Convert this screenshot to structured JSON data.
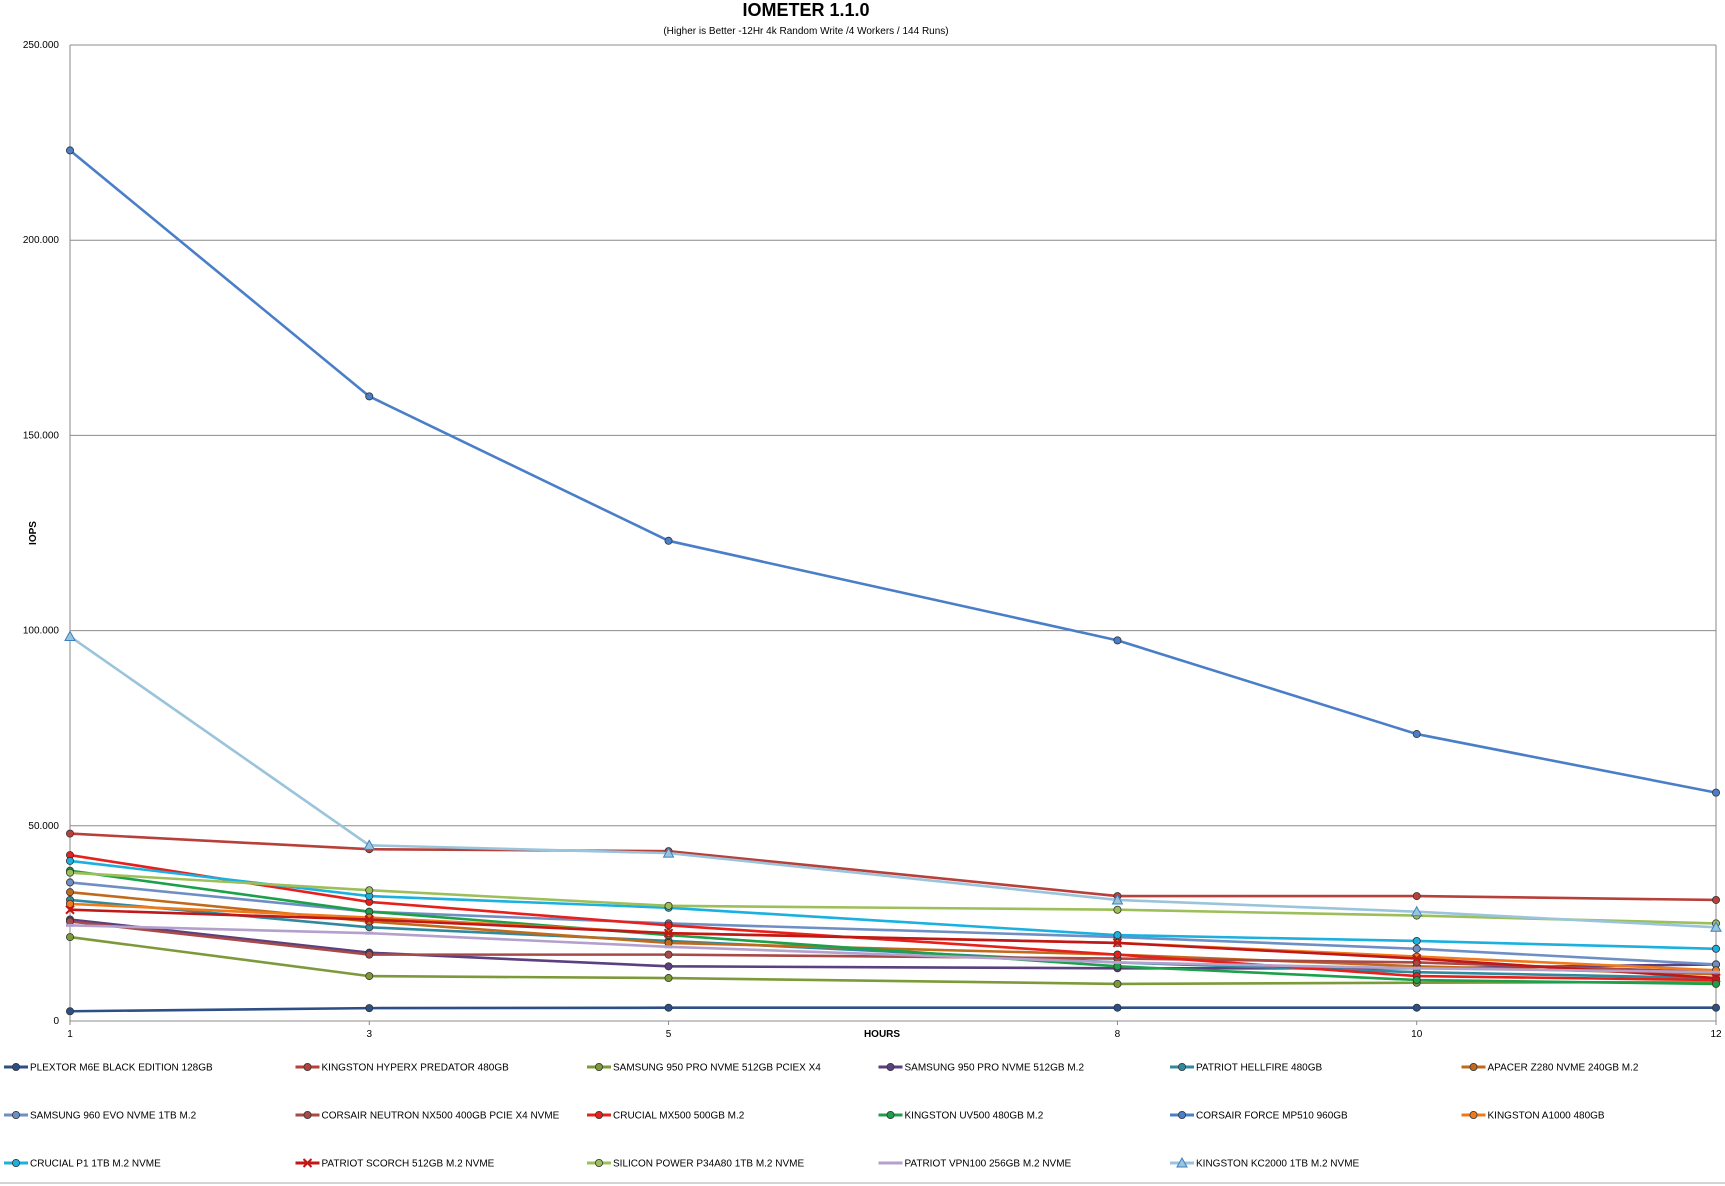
{
  "chart_data": {
    "type": "line",
    "title": "IOMETER 1.1.0",
    "subtitle": "(Higher is Better -12Hr 4k Random Write /4 Workers / 144 Runs)",
    "xlabel": "HOURS",
    "ylabel": "IOPS",
    "x": [
      1,
      3,
      5,
      8,
      10,
      12
    ],
    "x_tick_labels": [
      "1",
      "3",
      "5",
      "8",
      "10",
      "12"
    ],
    "ylim": [
      0,
      250000
    ],
    "y_ticks": [
      0,
      50000,
      100000,
      150000,
      200000,
      250000
    ],
    "y_tick_labels": [
      "0",
      "50.000",
      "100.000",
      "150.000",
      "200.000",
      "250.000"
    ],
    "grid": "horizontal",
    "legend_position": "bottom",
    "series": [
      {
        "name": "PLEXTOR M6E BLACK EDITION 128GB",
        "color": "#2e4f86",
        "marker": "circle",
        "values": [
          2500,
          3300,
          3400,
          3400,
          3400,
          3400
        ]
      },
      {
        "name": "KINGSTON HYPERX PREDATOR 480GB",
        "color": "#b8403a",
        "marker": "circle",
        "values": [
          48000,
          44000,
          43500,
          32000,
          32000,
          31000
        ]
      },
      {
        "name": "SAMSUNG 950 PRO NVME 512GB PCIEX X4",
        "color": "#7d9a3a",
        "marker": "circle",
        "values": [
          21500,
          11500,
          11000,
          9500,
          9800,
          10000
        ]
      },
      {
        "name": "SAMSUNG 950 PRO NVME 512GB M.2",
        "color": "#5b3f7f",
        "marker": "circle",
        "values": [
          26000,
          17500,
          14000,
          13500,
          13500,
          14500
        ]
      },
      {
        "name": "PATRIOT HELLFIRE 480GB",
        "color": "#2f8a9e",
        "marker": "circle",
        "values": [
          31000,
          24000,
          20500,
          15000,
          12500,
          11000
        ]
      },
      {
        "name": "APACER Z280 NVME 240GB M.2",
        "color": "#c06a1c",
        "marker": "circle",
        "values": [
          33000,
          25500,
          20000,
          17000,
          14000,
          12000
        ]
      },
      {
        "name": "SAMSUNG 960 EVO NVME 1TB M.2",
        "color": "#6f8fc4",
        "marker": "circle",
        "values": [
          35500,
          28000,
          25000,
          21500,
          18500,
          14500
        ]
      },
      {
        "name": "CORSAIR NEUTRON NX500 400GB PCIE X4 NVME",
        "color": "#a84a48",
        "marker": "circle",
        "values": [
          25500,
          17000,
          17000,
          16000,
          15000,
          12500
        ]
      },
      {
        "name": "CRUCIAL MX500 500GB M.2",
        "color": "#e8201c",
        "marker": "circle",
        "values": [
          42500,
          30500,
          24500,
          17000,
          11500,
          10500
        ]
      },
      {
        "name": "KINGSTON UV500 480GB M.2",
        "color": "#1ca04a",
        "marker": "circle",
        "values": [
          38500,
          28000,
          22000,
          14000,
          10500,
          9500
        ]
      },
      {
        "name": "CORSAIR FORCE MP510 960GB",
        "color": "#4a7ec8",
        "marker": "circle",
        "values": [
          223000,
          160000,
          123000,
          97500,
          73500,
          58500
        ]
      },
      {
        "name": "KINGSTON A1000 480GB",
        "color": "#f07a1a",
        "marker": "circle",
        "values": [
          30000,
          26500,
          22500,
          20000,
          16500,
          13000
        ]
      },
      {
        "name": "CRUCIAL P1 1TB M.2 NVME",
        "color": "#1ab0e0",
        "marker": "circle",
        "values": [
          41000,
          32000,
          29000,
          22000,
          20500,
          18500
        ]
      },
      {
        "name": "PATRIOT SCORCH 512GB M.2 NVME",
        "color": "#c01818",
        "marker": "x",
        "values": [
          28500,
          26000,
          22500,
          20000,
          16000,
          11000
        ]
      },
      {
        "name": "SILICON POWER P34A80 1TB M.2 NVME",
        "color": "#9cbf5a",
        "marker": "circle",
        "values": [
          38000,
          33500,
          29500,
          28500,
          27000,
          25000
        ]
      },
      {
        "name": "PATRIOT VPN100 256GB M.2 NVME",
        "color": "#b4a0cc",
        "marker": "dash",
        "values": [
          24500,
          22500,
          19000,
          15000,
          13500,
          12500
        ]
      },
      {
        "name": "KINGSTON KC2000 1TB M.2 NVME",
        "color": "#9ac4dc",
        "marker": "triangle",
        "values": [
          98500,
          45000,
          43000,
          31000,
          28000,
          24000
        ]
      }
    ]
  }
}
